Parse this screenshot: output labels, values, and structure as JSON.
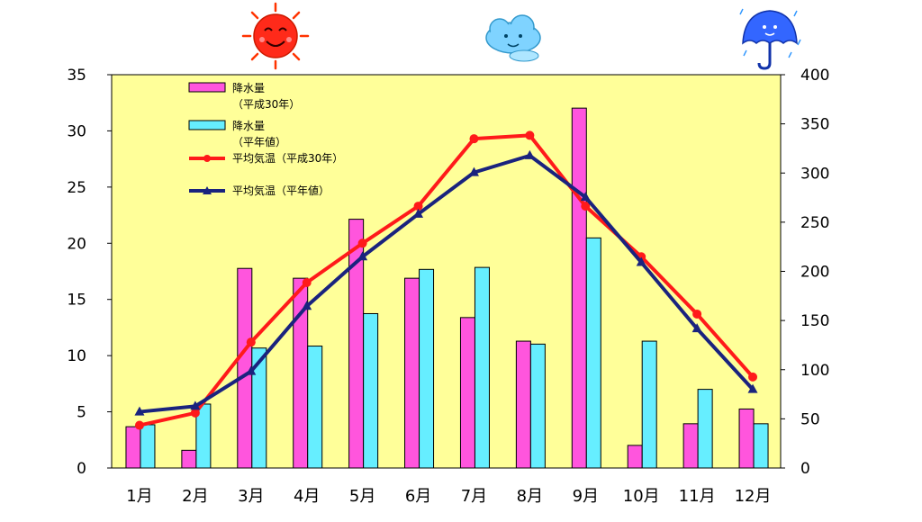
{
  "chart_data": {
    "type": "bar+line",
    "categories": [
      "1月",
      "2月",
      "3月",
      "4月",
      "5月",
      "6月",
      "7月",
      "8月",
      "9月",
      "10月",
      "11月",
      "12月"
    ],
    "left_axis": {
      "ylim": [
        0,
        35
      ],
      "ticks": [
        0,
        5,
        10,
        15,
        20,
        25,
        30,
        35
      ]
    },
    "right_axis": {
      "ylim": [
        0,
        400
      ],
      "ticks": [
        0,
        50,
        100,
        150,
        200,
        250,
        300,
        350,
        400
      ]
    },
    "series": [
      {
        "name": "降水量（平成30年）",
        "kind": "bar",
        "axis": "right",
        "color": "#ff55dd",
        "values": [
          42,
          18,
          203,
          193,
          253,
          193,
          153,
          129,
          366,
          23,
          45,
          60
        ]
      },
      {
        "name": "降水量（平年値）",
        "kind": "bar",
        "axis": "right",
        "color": "#66eeff",
        "values": [
          44,
          65,
          122,
          124,
          157,
          202,
          204,
          126,
          234,
          129,
          80,
          45
        ]
      },
      {
        "name": "平均気温（平成30年）",
        "kind": "line",
        "axis": "left",
        "color": "#ff1a1a",
        "values": [
          3.8,
          4.9,
          11.2,
          16.5,
          20.0,
          23.3,
          29.3,
          29.6,
          23.3,
          18.8,
          13.7,
          8.1
        ]
      },
      {
        "name": "平均気温（平年値）",
        "kind": "line",
        "axis": "left",
        "color": "#1a237e",
        "values": [
          5.0,
          5.5,
          8.6,
          14.4,
          18.8,
          22.6,
          26.3,
          27.8,
          24.1,
          18.3,
          12.4,
          7.0
        ]
      }
    ],
    "legend": {
      "position": "top-left",
      "entries": [
        {
          "series": 0,
          "lines": [
            "降水量",
            "（平成30年）"
          ]
        },
        {
          "series": 1,
          "lines": [
            "降水量",
            "（平年値）"
          ]
        },
        {
          "series": 2,
          "lines": [
            "平均気温（平成30年）"
          ]
        },
        {
          "series": 3,
          "lines": [
            "平均気温（平年値）"
          ]
        }
      ]
    },
    "colors": {
      "plot_bg": "#ffff99",
      "border": "#000000",
      "text": "#000000"
    }
  },
  "icons": [
    "sun-face-icon",
    "cloud-face-icon",
    "umbrella-rain-icon"
  ]
}
